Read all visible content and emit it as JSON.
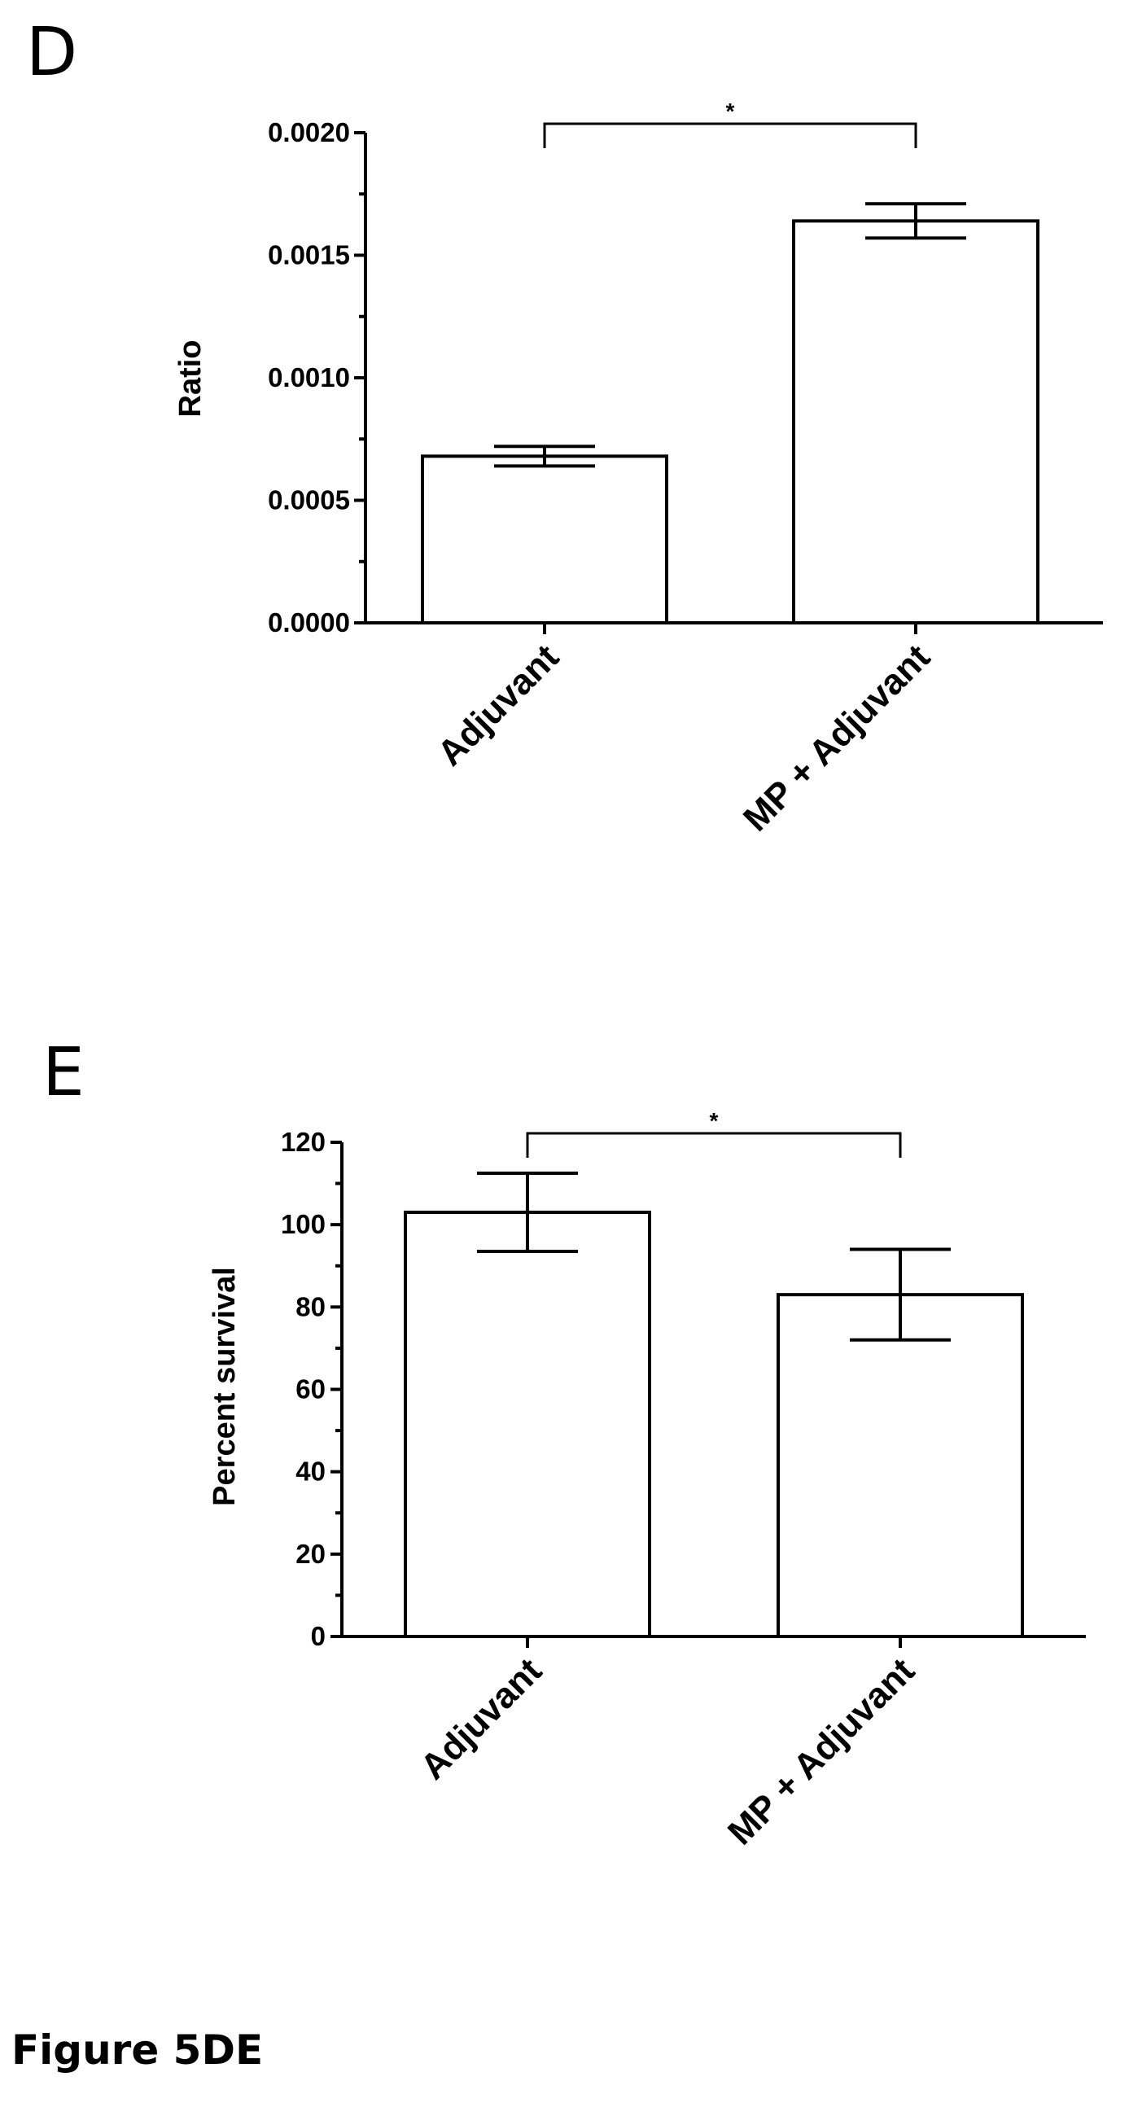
{
  "figure_caption": "Figure 5DE",
  "panels": [
    {
      "letter": "D"
    },
    {
      "letter": "E"
    }
  ],
  "chart_data": [
    {
      "type": "bar",
      "categories": [
        "Adjuvant",
        "MP + Adjuvant"
      ],
      "values": [
        0.00068,
        0.00164
      ],
      "errors": [
        4e-05,
        7e-05
      ],
      "ylabel": "Ratio",
      "xlabel": "",
      "ylim": [
        0,
        0.002
      ],
      "yticks": [
        "0.0000",
        "0.0005",
        "0.0010",
        "0.0015",
        "0.0020"
      ],
      "annotations": [
        {
          "text": "*",
          "between": [
            "Adjuvant",
            "MP + Adjuvant"
          ]
        }
      ],
      "grid": false,
      "bar_color": "#ffffff",
      "edge_color": "#000000"
    },
    {
      "type": "bar",
      "categories": [
        "Adjuvant",
        "MP + Adjuvant"
      ],
      "values": [
        103,
        83
      ],
      "errors": [
        9.5,
        11
      ],
      "ylabel": "Percent survival",
      "xlabel": "",
      "ylim": [
        0,
        120
      ],
      "yticks": [
        "0",
        "20",
        "40",
        "60",
        "80",
        "100",
        "120"
      ],
      "annotations": [
        {
          "text": "*",
          "between": [
            "Adjuvant",
            "MP + Adjuvant"
          ]
        }
      ],
      "grid": false,
      "bar_color": "#ffffff",
      "edge_color": "#000000"
    }
  ]
}
